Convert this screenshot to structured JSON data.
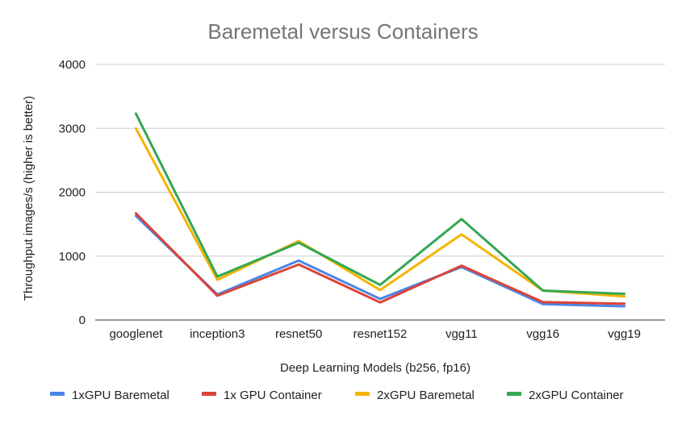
{
  "chart_data": {
    "type": "line",
    "title": "Baremetal versus Containers",
    "xlabel": "Deep Learning Models (b256, fp16)",
    "ylabel": "Throughput images/s (higher is better)",
    "ylim": [
      0,
      4000
    ],
    "yticks": [
      0,
      1000,
      2000,
      3000,
      4000
    ],
    "grid": true,
    "legend_position": "bottom",
    "categories": [
      "googlenet",
      "inception3",
      "resnet50",
      "resnet152",
      "vgg11",
      "vgg16",
      "vgg19"
    ],
    "series": [
      {
        "name": "1xGPU Baremetal",
        "color": "#4a86e8",
        "values": [
          1630,
          400,
          930,
          330,
          830,
          250,
          215
        ]
      },
      {
        "name": "1x GPU Container",
        "color": "#db4437",
        "values": [
          1670,
          380,
          870,
          275,
          850,
          280,
          255
        ]
      },
      {
        "name": "2xGPU Baremetal",
        "color": "#f4b400",
        "values": [
          3000,
          630,
          1235,
          470,
          1340,
          460,
          370
        ]
      },
      {
        "name": "2xGPU Container",
        "color": "#34a853",
        "values": [
          3230,
          680,
          1210,
          550,
          1580,
          460,
          410
        ]
      }
    ]
  }
}
